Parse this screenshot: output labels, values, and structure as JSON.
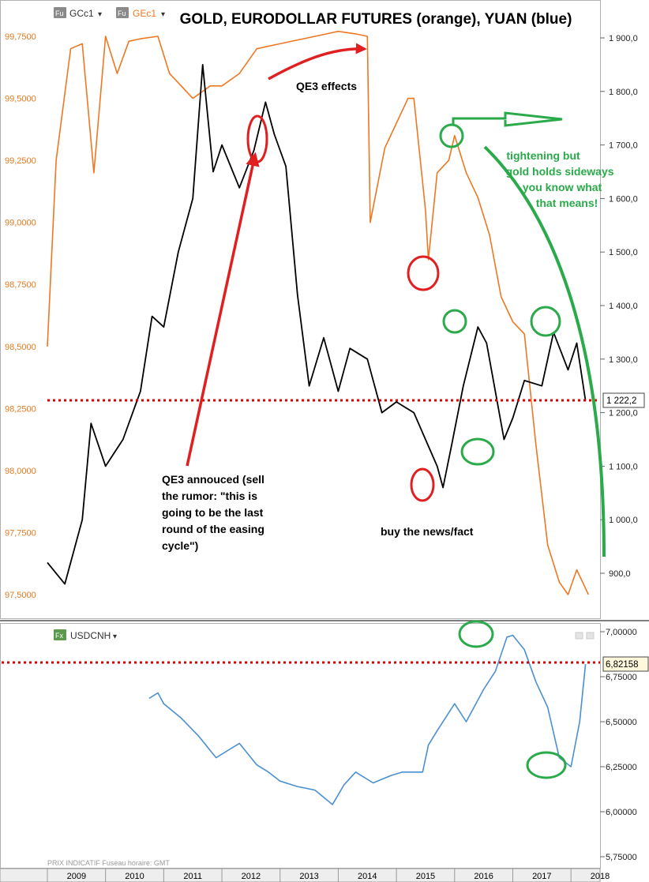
{
  "title": "GOLD, EURODOLLAR FUTURES (orange), YUAN (blue)",
  "colors": {
    "gold": "#000000",
    "eurodollar": "#ee7722",
    "yuan": "#4a90d0",
    "annot_red": "#e02020",
    "annot_green": "#2aaa4a",
    "dotted": "#dd0000"
  },
  "top_panel": {
    "legend": [
      {
        "badge": "Fu",
        "label": "GCc1",
        "caret": "▾"
      },
      {
        "badge": "Fu",
        "label": "GEc1",
        "caret": "▾"
      }
    ],
    "left_axis_ticks": [
      "99,7500",
      "99,5000",
      "99,2500",
      "99,0000",
      "98,7500",
      "98,5000",
      "98,2500",
      "98,0000",
      "97,7500",
      "97,5000"
    ],
    "right_axis_ticks": [
      "1 900,0",
      "1 800,0",
      "1 700,0",
      "1 600,0",
      "1 500,0",
      "1 400,0",
      "1 300,0",
      "1 200,0",
      "1 100,0",
      "1 000,0",
      "900,0"
    ],
    "last_value": "1 222,2",
    "annotations": {
      "qe3_effects": "QE3 effects",
      "qe3_announced": [
        "QE3 annouced (sell",
        "the rumor: \"this is",
        "going to be the last",
        "round of the easing",
        "cycle\")"
      ],
      "buy_news": "buy the news/fact",
      "tightening": [
        "tightening but",
        "gold holds sideways",
        "you know what",
        "that means!"
      ]
    }
  },
  "bottom_panel": {
    "legend": {
      "badge": "Fx",
      "label": "USDCNH",
      "caret": "▾"
    },
    "right_axis_ticks": [
      "7,00000",
      "6,75000",
      "6,50000",
      "6,25000",
      "6,00000",
      "5,75000"
    ],
    "last_value": "6,82158",
    "footer": "PRIX INDICATIF   Fuseau horaire: GMT"
  },
  "x_axis_labels": [
    "2009",
    "2010",
    "2011",
    "2012",
    "2013",
    "2014",
    "2015",
    "2016",
    "2017",
    "2018"
  ],
  "chart_data": [
    {
      "type": "line",
      "title": "GOLD, EURODOLLAR FUTURES (orange), YUAN (blue)",
      "series": [
        {
          "name": "GCc1",
          "axis": "right",
          "x": [
            2009.0,
            2009.3,
            2009.6,
            2009.75,
            2010.0,
            2010.3,
            2010.6,
            2010.8,
            2011.0,
            2011.25,
            2011.5,
            2011.67,
            2011.85,
            2012.0,
            2012.3,
            2012.55,
            2012.75,
            2012.9,
            2013.1,
            2013.3,
            2013.5,
            2013.75,
            2014.0,
            2014.2,
            2014.5,
            2014.75,
            2015.0,
            2015.3,
            2015.5,
            2015.7,
            2015.8,
            2015.95,
            2016.15,
            2016.4,
            2016.55,
            2016.85,
            2017.0,
            2017.2,
            2017.5,
            2017.7,
            2017.95,
            2018.1,
            2018.25
          ],
          "values": [
            920,
            880,
            1000,
            1180,
            1100,
            1150,
            1240,
            1380,
            1360,
            1500,
            1600,
            1850,
            1650,
            1700,
            1620,
            1690,
            1780,
            1720,
            1660,
            1420,
            1250,
            1340,
            1240,
            1320,
            1300,
            1200,
            1220,
            1200,
            1150,
            1100,
            1060,
            1140,
            1250,
            1360,
            1330,
            1150,
            1190,
            1260,
            1250,
            1350,
            1280,
            1330,
            1222.2
          ]
        },
        {
          "name": "GEc1",
          "axis": "left",
          "x": [
            2009.0,
            2009.15,
            2009.4,
            2009.6,
            2009.8,
            2010.0,
            2010.2,
            2010.4,
            2010.6,
            2010.9,
            2011.1,
            2011.3,
            2011.5,
            2011.8,
            2012.0,
            2012.3,
            2012.6,
            2013.0,
            2013.4,
            2013.8,
            2014.0,
            2014.3,
            2014.5,
            2014.55,
            2014.8,
            2015.0,
            2015.2,
            2015.3,
            2015.5,
            2015.55,
            2015.7,
            2015.9,
            2016.0,
            2016.2,
            2016.4,
            2016.6,
            2016.8,
            2017.0,
            2017.2,
            2017.4,
            2017.6,
            2017.8,
            2017.95,
            2018.1,
            2018.2,
            2018.3
          ],
          "values": [
            98.5,
            99.25,
            99.7,
            99.72,
            99.2,
            99.75,
            99.6,
            99.73,
            99.74,
            99.75,
            99.6,
            99.55,
            99.5,
            99.55,
            99.55,
            99.6,
            99.7,
            99.72,
            99.74,
            99.76,
            99.77,
            99.76,
            99.75,
            99.0,
            99.3,
            99.4,
            99.5,
            99.5,
            99.05,
            98.85,
            99.2,
            99.25,
            99.35,
            99.2,
            99.1,
            98.95,
            98.7,
            98.6,
            98.55,
            98.1,
            97.7,
            97.55,
            97.5,
            97.6,
            97.55,
            97.5
          ]
        }
      ],
      "left_ylim": [
        97.5,
        99.75
      ],
      "right_ylim": [
        850,
        1900
      ]
    },
    {
      "type": "line",
      "series": [
        {
          "name": "USDCNH",
          "x": [
            2010.75,
            2010.9,
            2011.0,
            2011.3,
            2011.6,
            2011.9,
            2012.0,
            2012.3,
            2012.6,
            2012.8,
            2013.0,
            2013.3,
            2013.6,
            2013.9,
            2014.1,
            2014.3,
            2014.6,
            2014.9,
            2015.1,
            2015.45,
            2015.55,
            2015.7,
            2016.0,
            2016.2,
            2016.5,
            2016.7,
            2016.9,
            2017.0,
            2017.2,
            2017.4,
            2017.6,
            2017.8,
            2018.0,
            2018.15,
            2018.25
          ],
          "values": [
            6.63,
            6.66,
            6.6,
            6.52,
            6.42,
            6.3,
            6.32,
            6.38,
            6.26,
            6.22,
            6.17,
            6.14,
            6.12,
            6.04,
            6.15,
            6.22,
            6.16,
            6.2,
            6.22,
            6.22,
            6.37,
            6.45,
            6.6,
            6.5,
            6.68,
            6.78,
            6.97,
            6.98,
            6.9,
            6.72,
            6.58,
            6.3,
            6.25,
            6.5,
            6.82
          ]
        }
      ],
      "ylim": [
        5.7,
        7.05
      ]
    }
  ]
}
